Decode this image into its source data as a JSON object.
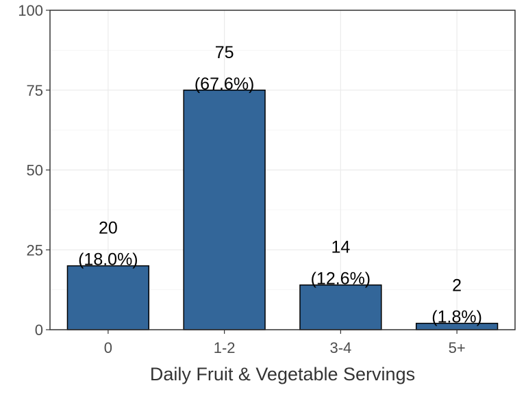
{
  "chart_data": {
    "type": "bar",
    "title": "",
    "xlabel": "Daily Fruit & Vegetable Servings",
    "ylabel": "",
    "categories": [
      "0",
      "1-2",
      "3-4",
      "5+"
    ],
    "values": [
      20,
      75,
      14,
      2
    ],
    "count_labels": [
      "20",
      "75",
      "14",
      "2"
    ],
    "percent_labels": [
      "(18.0%)",
      "(67.6%)",
      "(12.6%)",
      "(1.8%)"
    ],
    "ylim": [
      0,
      100
    ],
    "yticks": [
      0,
      25,
      50,
      75,
      100
    ],
    "grid": true,
    "legend": "none",
    "bar_color": "#336699",
    "bar_edge_color": "#000000"
  }
}
